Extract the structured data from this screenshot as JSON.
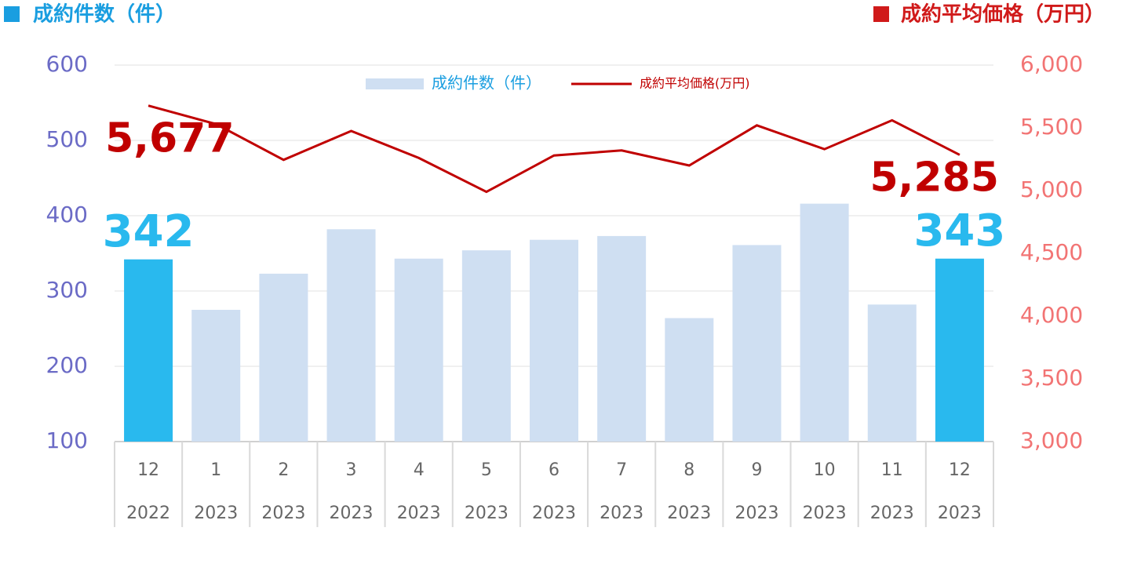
{
  "chart_data": {
    "type": "bar_line",
    "title": "成約件数（件）",
    "title_right": "成約平均価格（万円）",
    "title_color": "#1a9ee0",
    "title_right_color": "#d01a1a",
    "categories": [
      "12",
      "1",
      "2",
      "3",
      "4",
      "5",
      "6",
      "7",
      "8",
      "9",
      "10",
      "11",
      "12"
    ],
    "category_years": [
      "2022",
      "2023",
      "2023",
      "2023",
      "2023",
      "2023",
      "2023",
      "2023",
      "2023",
      "2023",
      "2023",
      "2023",
      "2023"
    ],
    "series": [
      {
        "name": "成約件数（件）",
        "type": "bar",
        "color": "#cfdff2",
        "colors": [
          "#29b9ee",
          "#cfdff2",
          "#cfdff2",
          "#cfdff2",
          "#cfdff2",
          "#cfdff2",
          "#cfdff2",
          "#cfdff2",
          "#cfdff2",
          "#cfdff2",
          "#cfdff2",
          "#cfdff2",
          "#29b9ee"
        ],
        "values": [
          342,
          275,
          323,
          382,
          343,
          354,
          368,
          373,
          264,
          361,
          416,
          282,
          343
        ],
        "value_labels": [
          "342",
          null,
          null,
          null,
          null,
          null,
          null,
          null,
          null,
          null,
          null,
          null,
          "343"
        ],
        "label_color": "#29b9ee"
      },
      {
        "name": "成約平均価格(万円)",
        "type": "line",
        "axis": "y2",
        "color": "#c00000",
        "values": [
          5677,
          5530,
          5245,
          5475,
          5260,
          4990,
          5280,
          5320,
          5200,
          5520,
          5330,
          5560,
          5285
        ],
        "value_labels": [
          "5,677",
          null,
          null,
          null,
          null,
          null,
          null,
          null,
          null,
          null,
          null,
          null,
          "5,285"
        ],
        "label_color": "#c00000"
      }
    ],
    "ylim": [
      100,
      600
    ],
    "yticks": [
      100,
      200,
      300,
      400,
      500,
      600
    ],
    "y2lim": [
      3000,
      6000
    ],
    "y2ticks": [
      {
        "value": 3000,
        "label": "3,000"
      },
      {
        "value": 3500,
        "label": "3,500"
      },
      {
        "value": 4000,
        "label": "4,000"
      },
      {
        "value": 4500,
        "label": "4,500"
      },
      {
        "value": 5000,
        "label": "5,000"
      },
      {
        "value": 5500,
        "label": "5,500"
      },
      {
        "value": 6000,
        "label": "6,000"
      }
    ],
    "ytick_color": "#6b6bc6",
    "y2tick_color": "#f27474",
    "grid": true
  }
}
